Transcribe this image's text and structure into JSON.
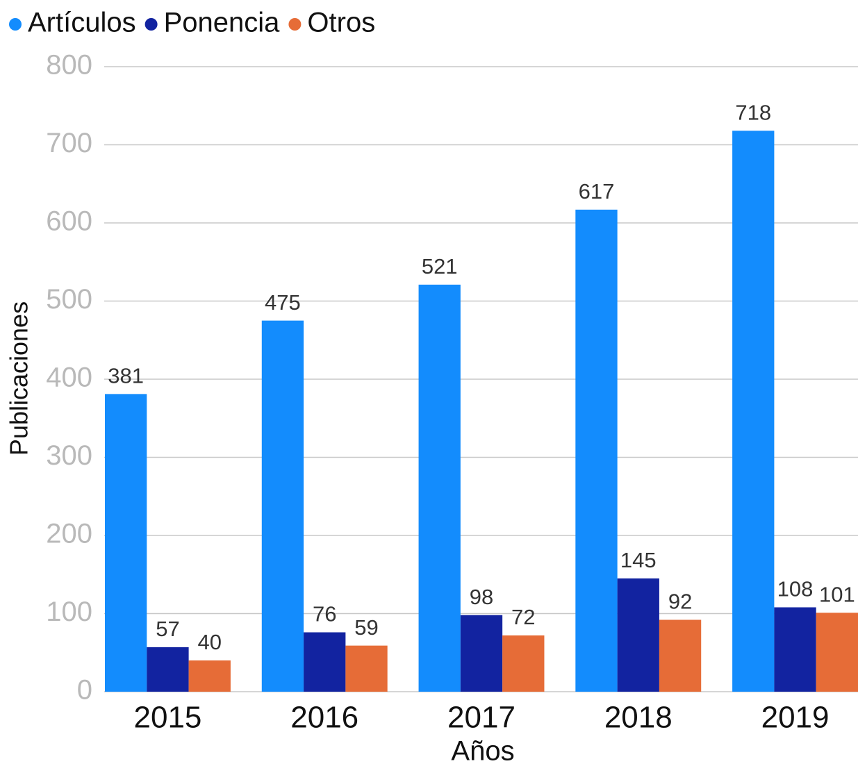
{
  "chart_data": {
    "type": "bar",
    "x_label": "Años",
    "y_label": "Publicaciones",
    "categories": [
      "2015",
      "2016",
      "2017",
      "2018",
      "2019"
    ],
    "series": [
      {
        "name": "Artículos",
        "color": "#138cfd",
        "values": [
          381,
          475,
          521,
          617,
          718
        ]
      },
      {
        "name": "Ponencia",
        "color": "#1223a0",
        "values": [
          57,
          76,
          98,
          145,
          108
        ]
      },
      {
        "name": "Otros",
        "color": "#e66c37",
        "values": [
          40,
          59,
          72,
          92,
          101
        ]
      }
    ],
    "ylim": [
      0,
      800
    ],
    "yticks": [
      0,
      100,
      200,
      300,
      400,
      500,
      600,
      700,
      800
    ],
    "grid": true,
    "legend": "top-left"
  }
}
